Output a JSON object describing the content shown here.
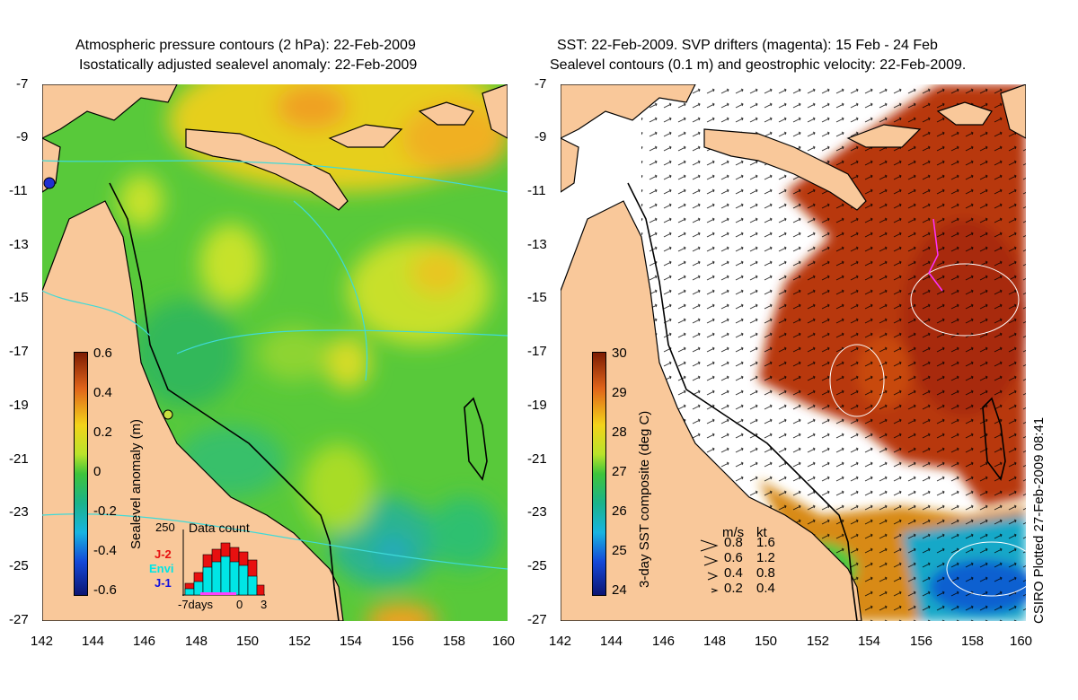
{
  "left_panel": {
    "title_line1": "Atmospheric pressure contours (2 hPa): 22-Feb-2009",
    "title_line2": "Isostatically adjusted sealevel anomaly: 22-Feb-2009",
    "colorbar_label": "Sealevel anomaly (m)",
    "colorbar_ticks": [
      "0.6",
      "0.4",
      "0.2",
      "0",
      "-0.2",
      "-0.4",
      "-0.6"
    ],
    "inset": {
      "title": "Data count",
      "ymax_label": "250",
      "x_labels": [
        "-7days",
        "0",
        "3"
      ],
      "legend": [
        {
          "label": "J-2",
          "color": "#e81010"
        },
        {
          "label": "Envi",
          "color": "#00e5e5"
        },
        {
          "label": "J-1",
          "color": "#1010e0"
        }
      ]
    }
  },
  "right_panel": {
    "title_line1": "SST: 22-Feb-2009. SVP drifters (magenta): 15 Feb - 24 Feb",
    "title_line2": "Sealevel contours (0.1 m) and geostrophic velocity: 22-Feb-2009.",
    "colorbar_label": "3-day SST composite (deg C)",
    "colorbar_ticks": [
      "30",
      "29",
      "28",
      "27",
      "26",
      "25",
      "24"
    ],
    "velocity_legend": {
      "header_ms": "m/s",
      "header_kt": "kt",
      "rows": [
        {
          "ms": "0.8",
          "kt": "1.6"
        },
        {
          "ms": "0.6",
          "kt": "1.2"
        },
        {
          "ms": "0.4",
          "kt": "0.8"
        },
        {
          "ms": "0.2",
          "kt": "0.4"
        }
      ]
    }
  },
  "y_ticks": [
    "-7",
    "-9",
    "-11",
    "-13",
    "-15",
    "-17",
    "-19",
    "-21",
    "-23",
    "-25",
    "-27"
  ],
  "x_ticks": [
    "142",
    "144",
    "146",
    "148",
    "150",
    "152",
    "154",
    "156",
    "158",
    "160"
  ],
  "credit": "CSIRO Plotted 27-Feb-2009 08:41",
  "colors": {
    "land": "#f9c89a",
    "ocean_mid": "#5fcf3a",
    "sst_warm": "#b83a0c",
    "cloud": "#ffffff"
  }
}
